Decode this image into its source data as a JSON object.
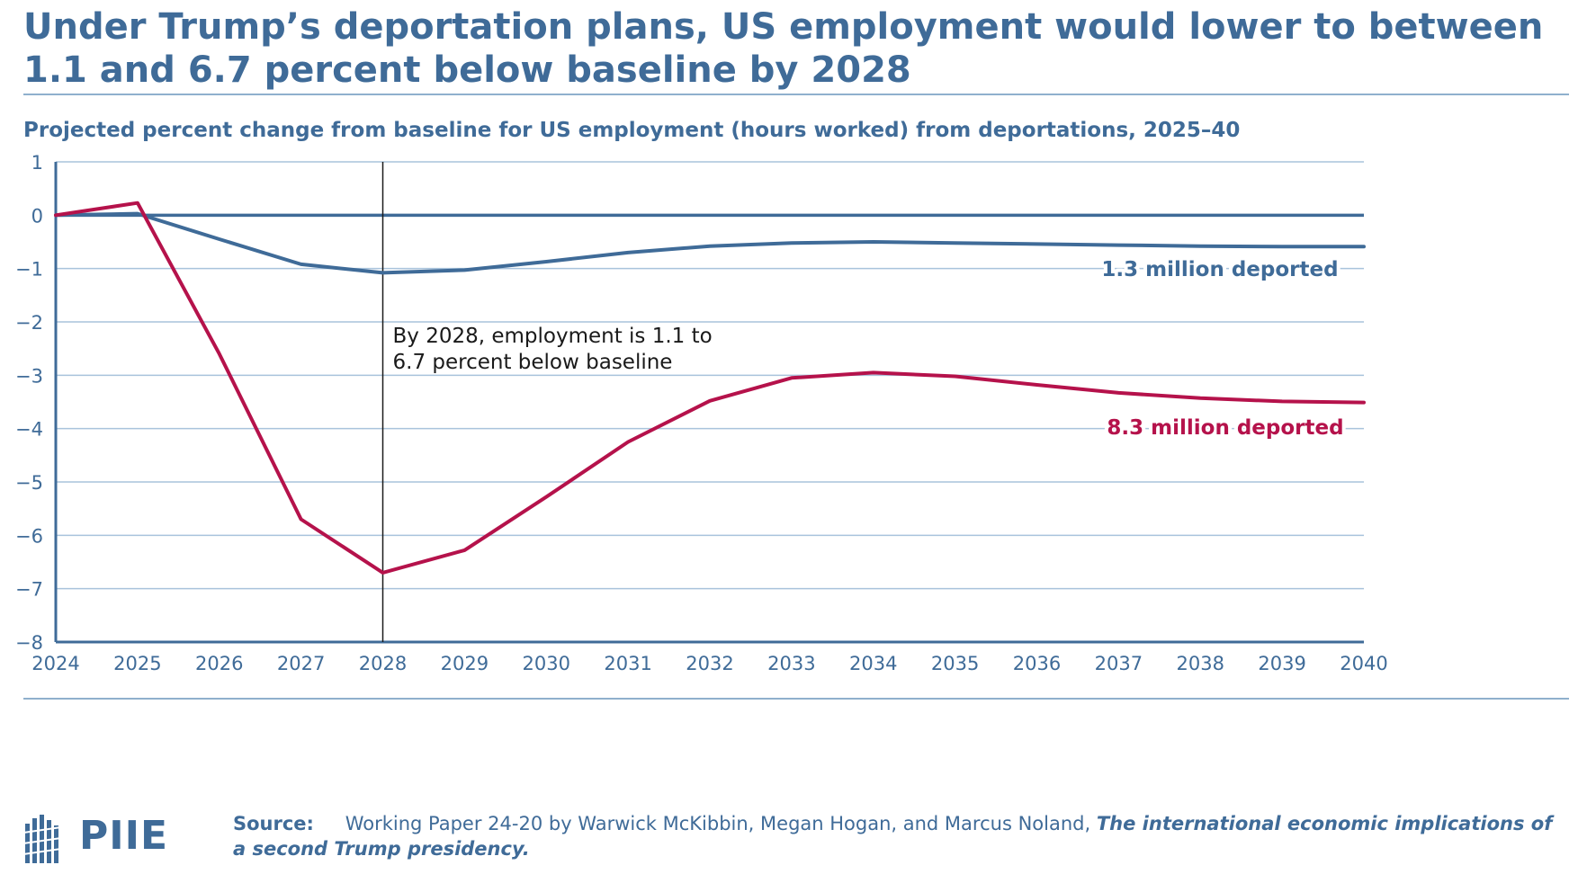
{
  "header": {
    "title": "Under Trump’s deportation plans, US employment would lower to between 1.1 and 6.7 percent below baseline by 2028",
    "subtitle": "Projected percent change from baseline for US employment (hours worked) from deportations, 2025–40"
  },
  "colors": {
    "brand": "#3f6b98",
    "series_low": "#3f6b98",
    "series_high": "#b5124b",
    "grid": "#a9c3dc",
    "annotation": "#1a1a1a"
  },
  "chart_data": {
    "type": "line",
    "x": [
      2024,
      2025,
      2026,
      2027,
      2028,
      2029,
      2030,
      2031,
      2032,
      2033,
      2034,
      2035,
      2036,
      2037,
      2038,
      2039,
      2040
    ],
    "series": [
      {
        "name": "1.3 million deported",
        "color": "#3f6b98",
        "values": [
          0,
          0.03,
          -0.45,
          -0.92,
          -1.08,
          -1.03,
          -0.87,
          -0.7,
          -0.58,
          -0.52,
          -0.5,
          -0.52,
          -0.54,
          -0.56,
          -0.58,
          -0.59,
          -0.59
        ]
      },
      {
        "name": "8.3 million deported",
        "color": "#b5124b",
        "values": [
          0,
          0.23,
          -2.6,
          -5.7,
          -6.7,
          -6.28,
          -5.28,
          -4.25,
          -3.48,
          -3.05,
          -2.95,
          -3.02,
          -3.18,
          -3.33,
          -3.43,
          -3.49,
          -3.51
        ]
      }
    ],
    "xlim": [
      2024,
      2040
    ],
    "ylim": [
      -8,
      1
    ],
    "y_ticks": [
      "1",
      "0",
      "−1",
      "−2",
      "−3",
      "−4",
      "−5",
      "−6",
      "−7",
      "−8"
    ],
    "x_ticks": [
      "2024",
      "2025",
      "2026",
      "2027",
      "2028",
      "2029",
      "2030",
      "2031",
      "2032",
      "2033",
      "2034",
      "2035",
      "2036",
      "2037",
      "2038",
      "2039",
      "2040"
    ],
    "grid": true,
    "reference_x": 2028,
    "annotation_lines": [
      "By 2028, employment is 1.1 to",
      "6.7 percent below baseline"
    ]
  },
  "footer": {
    "logo": "PIIE",
    "source_label": "Source:",
    "source_text": "Working Paper 24-20 by Warwick McKibbin, Megan Hogan, and Marcus Noland,",
    "source_title": "The international economic implications of a second Trump presidency."
  }
}
